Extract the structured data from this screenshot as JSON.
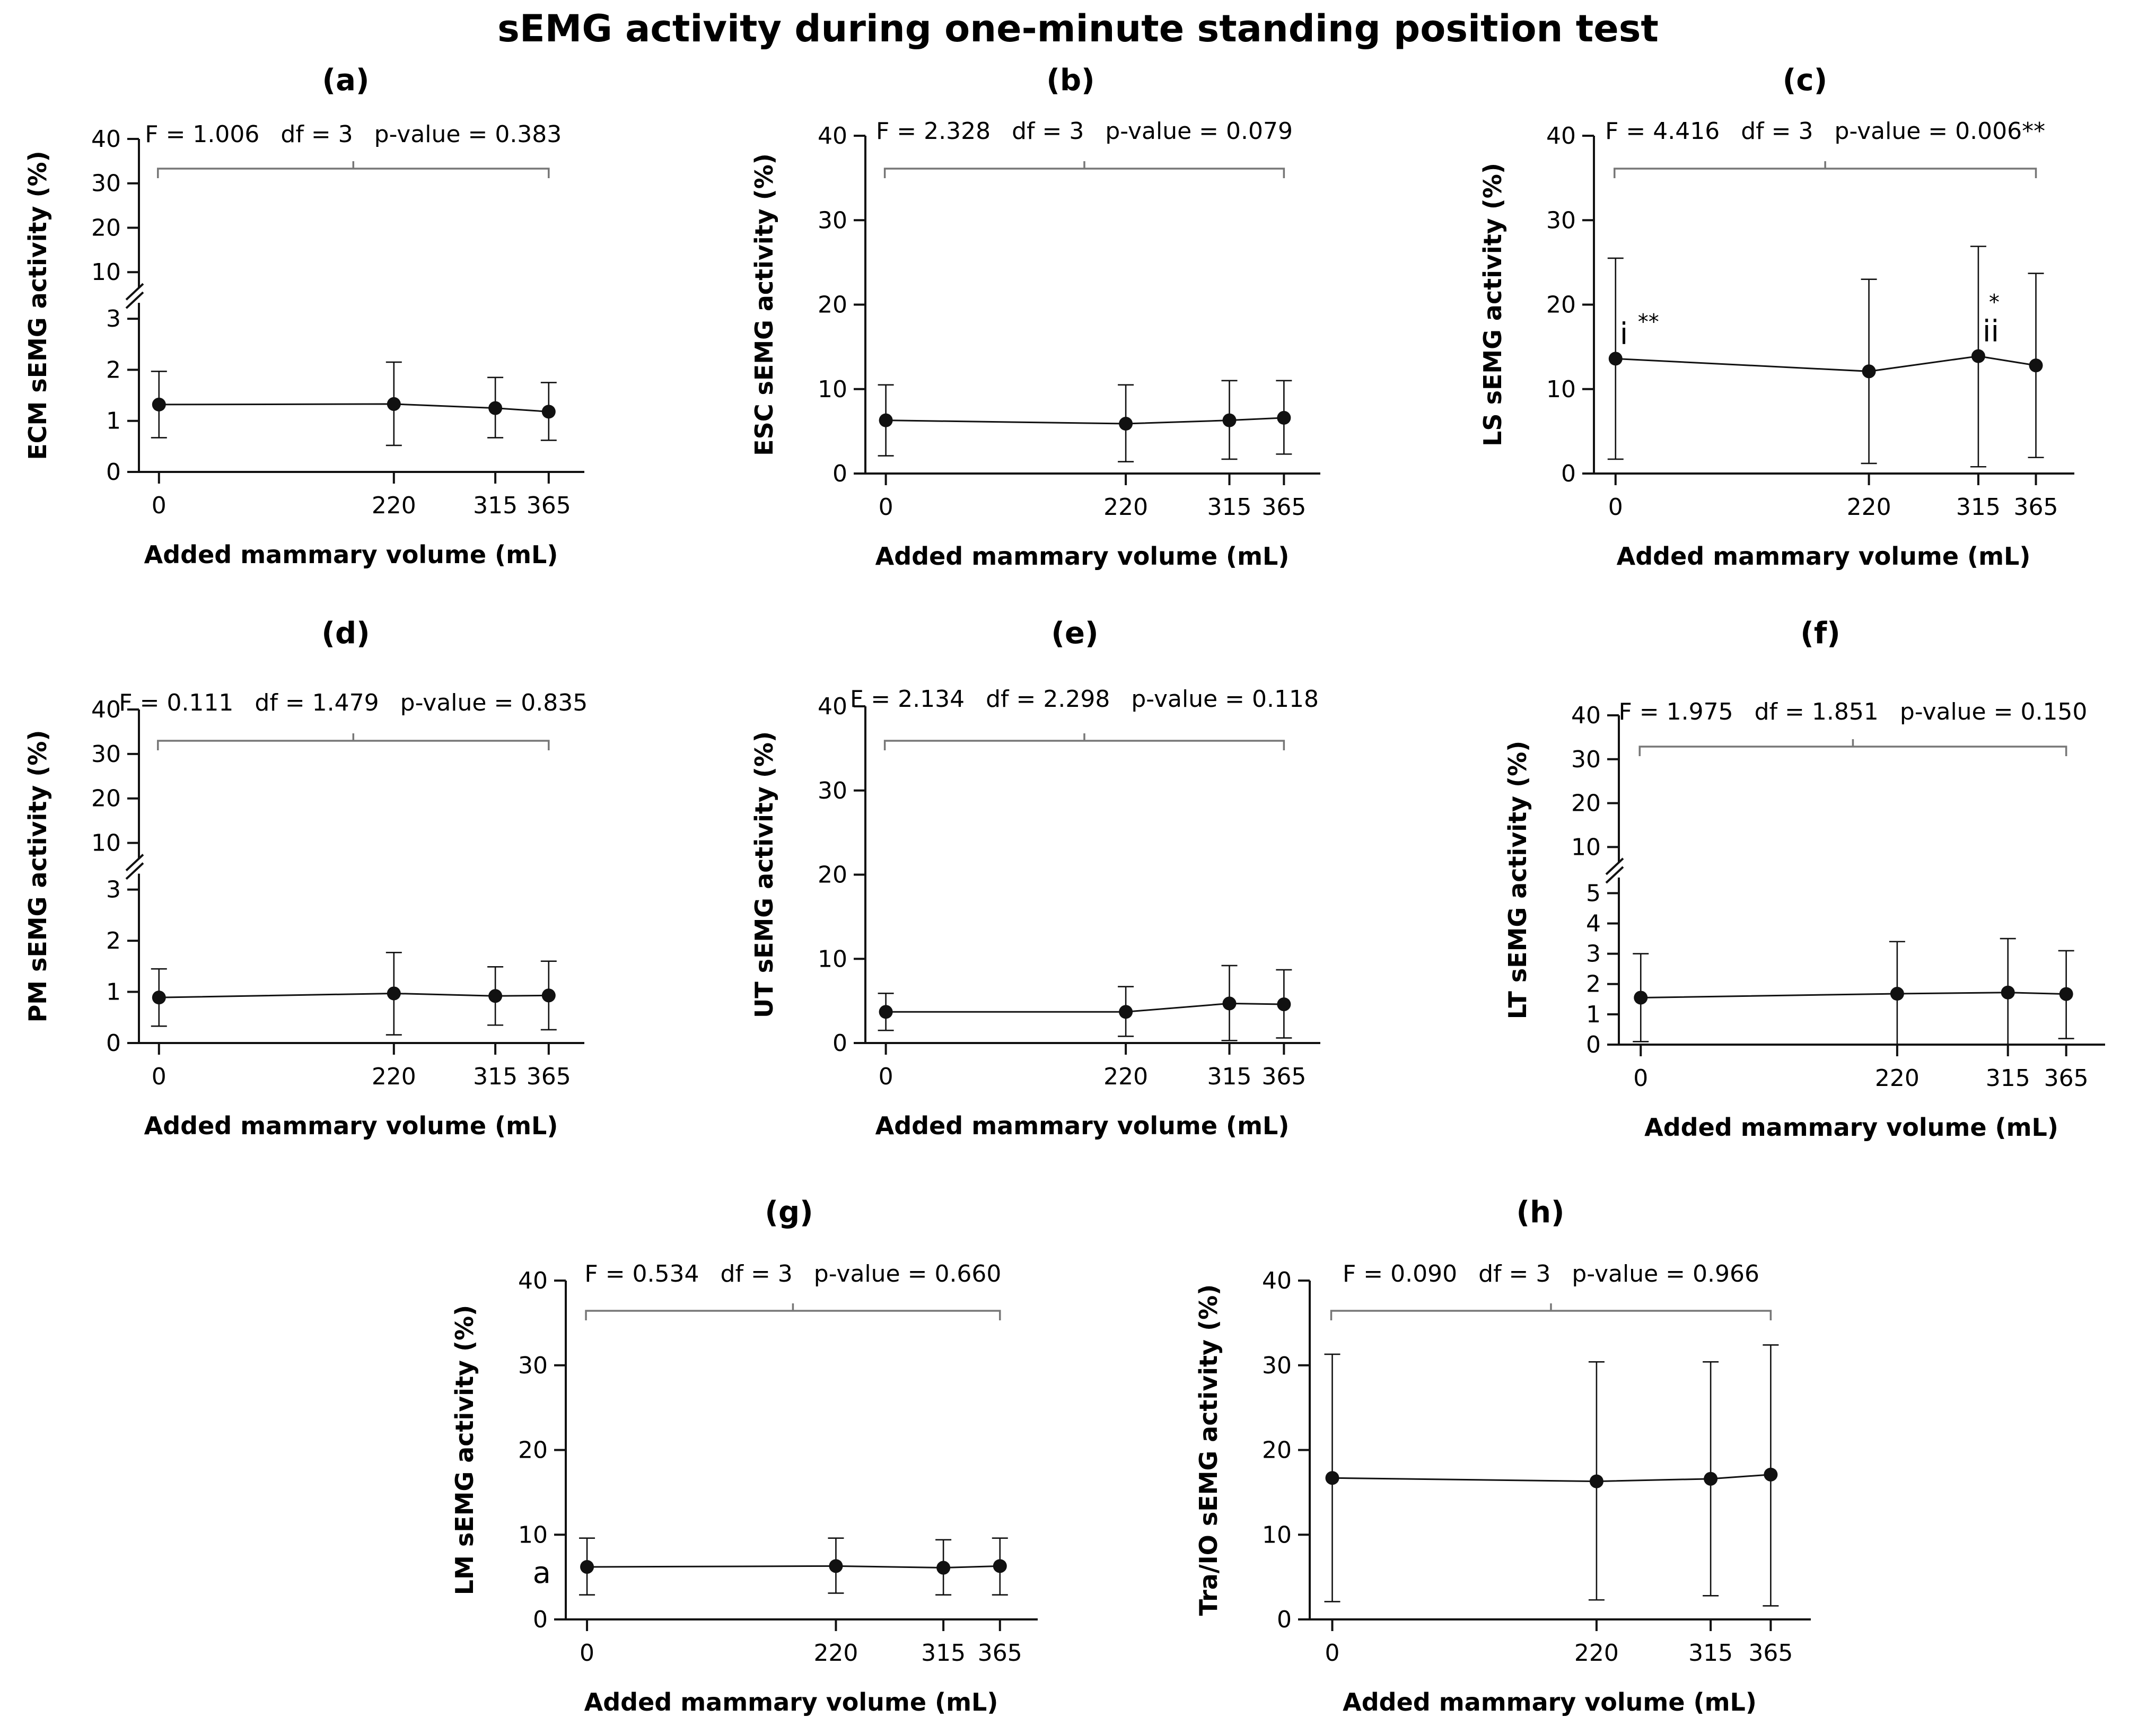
{
  "title": "sEMG activity during one-minute standing position test",
  "chart_data": [
    {
      "panel": "(a)",
      "type": "line",
      "ylabel": "ECM sEMG activity (%)",
      "xlabel": "Added mammary volume (mL)",
      "x": [
        0,
        220,
        315,
        365
      ],
      "x_ticks": [
        "0",
        "220",
        "315",
        "365"
      ],
      "y": [
        1.32,
        1.33,
        1.25,
        1.18
      ],
      "y_err_low": [
        0.67,
        0.52,
        0.67,
        0.62
      ],
      "y_err_high": [
        1.97,
        2.15,
        1.85,
        1.75
      ],
      "axis_break": {
        "lower_range": [
          0,
          3
        ],
        "upper_range": [
          10,
          40
        ]
      },
      "y_ticks": [
        "0",
        "1",
        "2",
        "3",
        "10",
        "20",
        "30",
        "40"
      ],
      "stat_F": "F = 1.006",
      "stat_df": "df = 3",
      "stat_p": "p-value = 0.383",
      "annotations": []
    },
    {
      "panel": "(b)",
      "type": "line",
      "ylabel": "ESC sEMG activity (%)",
      "xlabel": "Added mammary volume (mL)",
      "x": [
        0,
        220,
        315,
        365
      ],
      "x_ticks": [
        "0",
        "220",
        "315",
        "365"
      ],
      "y": [
        6.3,
        5.9,
        6.3,
        6.6
      ],
      "y_err_low": [
        2.1,
        1.4,
        1.7,
        2.3
      ],
      "y_err_high": [
        10.5,
        10.5,
        11.0,
        11.0
      ],
      "ylim": [
        0,
        40
      ],
      "y_ticks": [
        "0",
        "10",
        "20",
        "30",
        "40"
      ],
      "stat_F": "F = 2.328",
      "stat_df": "df = 3",
      "stat_p": "p-value = 0.079",
      "annotations": []
    },
    {
      "panel": "(c)",
      "type": "line",
      "ylabel": "LS sEMG activity (%)",
      "xlabel": "Added mammary volume (mL)",
      "x": [
        0,
        220,
        315,
        365
      ],
      "x_ticks": [
        "0",
        "220",
        "315",
        "365"
      ],
      "y": [
        13.6,
        12.1,
        13.9,
        12.8
      ],
      "y_err_low": [
        1.7,
        1.2,
        0.8,
        1.9
      ],
      "y_err_high": [
        25.5,
        23.0,
        26.9,
        23.7
      ],
      "ylim": [
        0,
        40
      ],
      "y_ticks": [
        "0",
        "10",
        "20",
        "30",
        "40"
      ],
      "stat_F": "F = 4.416",
      "stat_df": "df = 3",
      "stat_p": "p-value = 0.006**",
      "annotations": [
        {
          "point": 0,
          "mark": "i",
          "stars": "**"
        },
        {
          "point": 2,
          "mark": "ii",
          "stars": "*"
        }
      ]
    },
    {
      "panel": "(d)",
      "type": "line",
      "ylabel": "PM sEMG activity (%)",
      "xlabel": "Added mammary volume (mL)",
      "x": [
        0,
        220,
        315,
        365
      ],
      "x_ticks": [
        "0",
        "220",
        "315",
        "365"
      ],
      "y": [
        0.89,
        0.97,
        0.92,
        0.93
      ],
      "y_err_low": [
        0.33,
        0.16,
        0.35,
        0.26
      ],
      "y_err_high": [
        1.45,
        1.77,
        1.49,
        1.6
      ],
      "axis_break": {
        "lower_range": [
          0,
          3
        ],
        "upper_range": [
          10,
          40
        ]
      },
      "y_ticks": [
        "0",
        "1",
        "2",
        "3",
        "10",
        "20",
        "30",
        "40"
      ],
      "stat_F": "F = 0.111",
      "stat_df": "df = 1.479",
      "stat_p": "p-value = 0.835",
      "annotations": []
    },
    {
      "panel": "(e)",
      "type": "line",
      "ylabel": "UT sEMG activity (%)",
      "xlabel": "Added mammary volume (mL)",
      "x": [
        0,
        220,
        315,
        365
      ],
      "x_ticks": [
        "0",
        "220",
        "315",
        "365"
      ],
      "y": [
        3.7,
        3.7,
        4.7,
        4.6
      ],
      "y_err_low": [
        1.5,
        0.8,
        0.3,
        0.6
      ],
      "y_err_high": [
        5.9,
        6.7,
        9.2,
        8.7
      ],
      "ylim": [
        0,
        40
      ],
      "y_ticks": [
        "0",
        "10",
        "20",
        "30",
        "40"
      ],
      "stat_F": "F = 2.134",
      "stat_df": "df = 2.298",
      "stat_p": "p-value = 0.118",
      "annotations": []
    },
    {
      "panel": "(f)",
      "type": "line",
      "ylabel": "LT sEMG activity (%)",
      "xlabel": "Added mammary volume (mL)",
      "x": [
        0,
        220,
        315,
        365
      ],
      "x_ticks": [
        "0",
        "220",
        "315",
        "365"
      ],
      "y": [
        1.55,
        1.68,
        1.72,
        1.67
      ],
      "y_err_low": [
        0.1,
        0.0,
        0.0,
        0.2
      ],
      "y_err_high": [
        3.0,
        3.4,
        3.5,
        3.1
      ],
      "axis_break": {
        "lower_range": [
          0,
          5
        ],
        "upper_range": [
          10,
          40
        ]
      },
      "y_ticks": [
        "0",
        "1",
        "2",
        "3",
        "4",
        "5",
        "10",
        "20",
        "30",
        "40"
      ],
      "stat_F": "F = 1.975",
      "stat_df": "df = 1.851",
      "stat_p": "p-value = 0.150",
      "annotations": []
    },
    {
      "panel": "(g)",
      "type": "line",
      "ylabel": "LM sEMG activity (%)",
      "xlabel": "Added mammary volume (mL)",
      "x": [
        0,
        220,
        315,
        365
      ],
      "x_ticks": [
        "0",
        "220",
        "315",
        "365"
      ],
      "y": [
        6.2,
        6.3,
        6.1,
        6.3
      ],
      "y_err_low": [
        2.9,
        3.1,
        2.9,
        2.9
      ],
      "y_err_high": [
        9.6,
        9.6,
        9.4,
        9.6
      ],
      "ylim": [
        0,
        40
      ],
      "y_ticks": [
        "0",
        "10",
        "20",
        "30",
        "40"
      ],
      "stat_F": "F = 0.534",
      "stat_df": "df = 3",
      "stat_p": "p-value = 0.660",
      "annotations": [
        {
          "point": 0,
          "mark": "a",
          "stars": ""
        }
      ]
    },
    {
      "panel": "(h)",
      "type": "line",
      "ylabel": "Tra/IO sEMG activity (%)",
      "xlabel": "Added mammary volume (mL)",
      "x": [
        0,
        220,
        315,
        365
      ],
      "x_ticks": [
        "0",
        "220",
        "315",
        "365"
      ],
      "y": [
        16.7,
        16.3,
        16.6,
        17.1
      ],
      "y_err_low": [
        2.1,
        2.3,
        2.8,
        1.6
      ],
      "y_err_high": [
        31.3,
        30.4,
        30.4,
        32.4
      ],
      "ylim": [
        0,
        40
      ],
      "y_ticks": [
        "0",
        "10",
        "20",
        "30",
        "40"
      ],
      "stat_F": "F = 0.090",
      "stat_df": "df = 3",
      "stat_p": "p-value = 0.966",
      "annotations": []
    }
  ]
}
